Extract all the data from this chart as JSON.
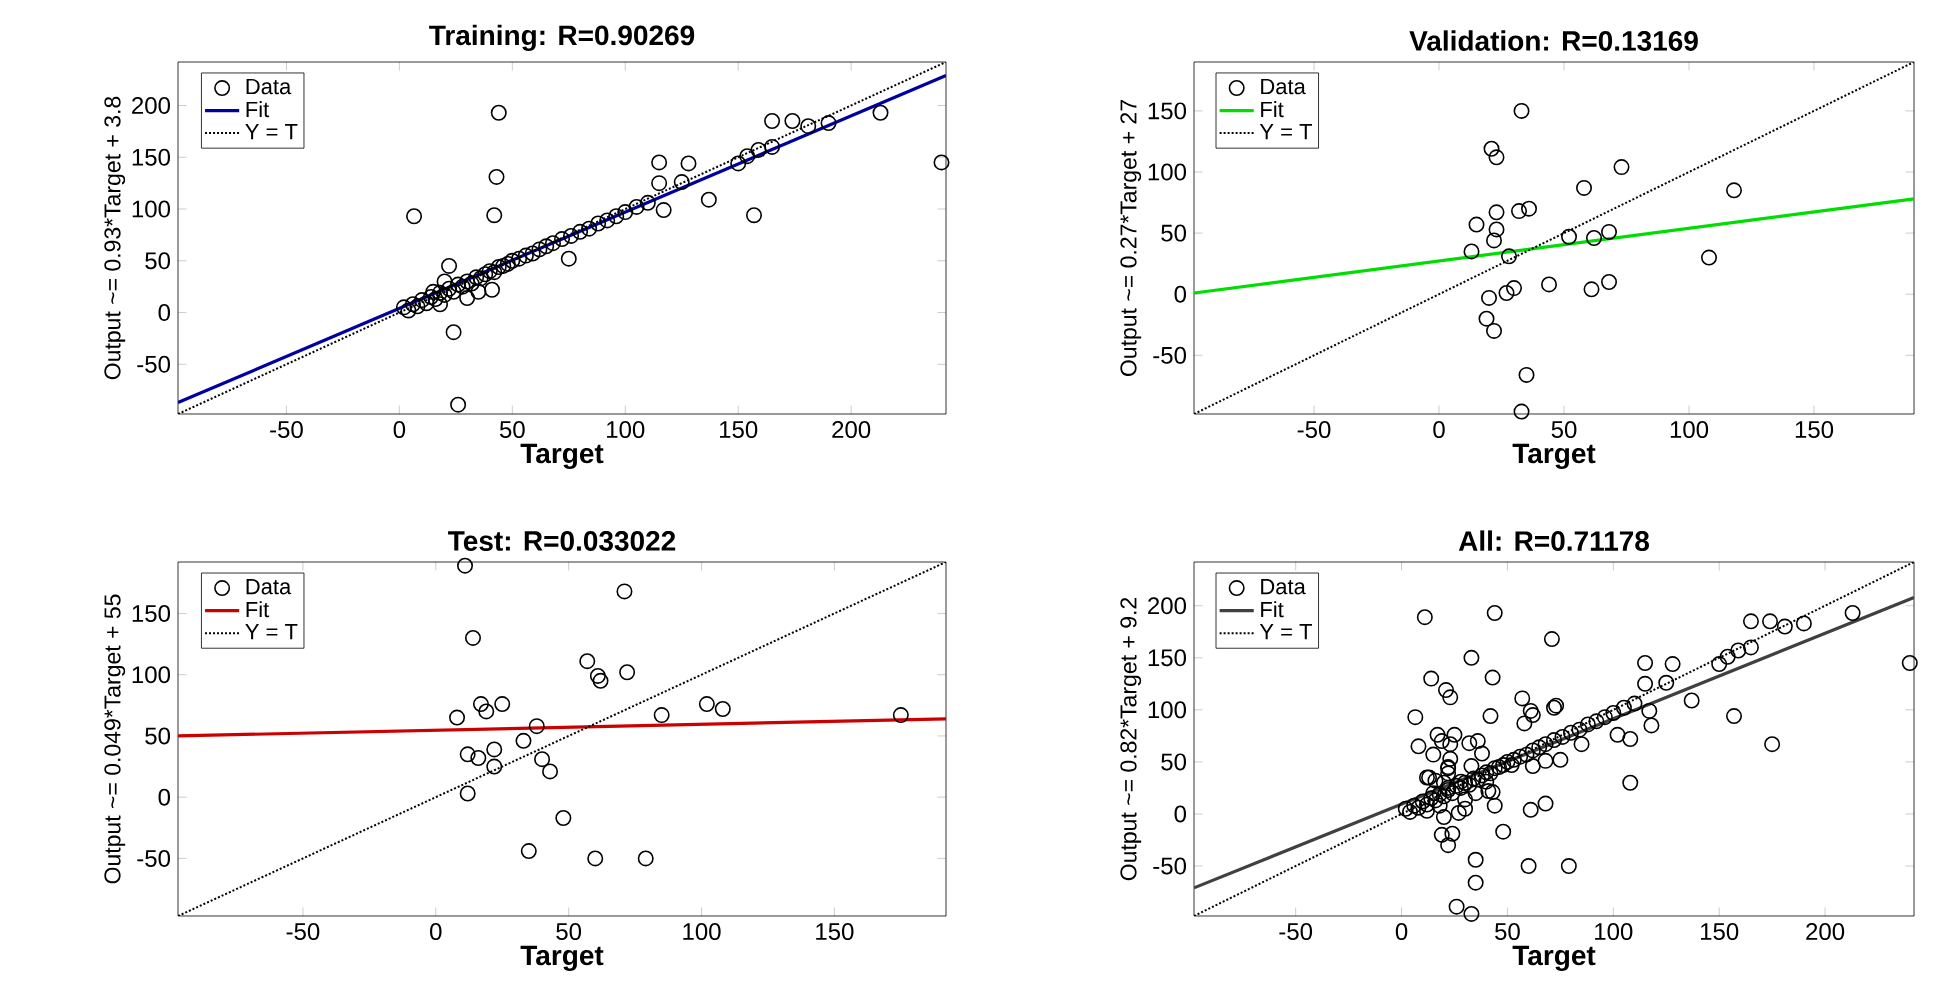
{
  "chart_data": [
    {
      "type": "scatter",
      "title": "Training: R=0.90269",
      "xlabel": "Target",
      "ylabel": "Output ~= 0.93*Target + 3.8",
      "xlim": [
        -98,
        242
      ],
      "ylim": [
        -98,
        242
      ],
      "xticks": [
        -50,
        0,
        50,
        100,
        150,
        200
      ],
      "yticks": [
        -50,
        0,
        50,
        100,
        150,
        200
      ],
      "legend": "top left",
      "series": [
        {
          "name": "Data",
          "marker": "circle",
          "color": "#000000",
          "x": [
            6.5,
            44,
            43,
            42,
            22,
            24,
            26,
            75,
            115,
            128,
            115,
            125,
            117,
            137,
            157,
            240,
            213,
            165,
            174,
            181,
            190,
            150,
            154,
            159,
            165,
            41,
            30,
            18,
            2,
            4,
            6,
            8,
            10,
            12,
            14,
            16,
            18,
            20,
            22,
            24,
            26,
            28,
            30,
            32,
            34,
            36,
            38,
            40,
            42,
            44,
            46,
            48,
            50,
            53,
            56,
            59,
            62,
            65,
            68,
            72,
            76,
            80,
            84,
            88,
            92,
            96,
            100,
            105,
            110,
            35,
            15,
            20
          ],
          "values": [
            93,
            193,
            131,
            94,
            45,
            -19,
            -89,
            52,
            145,
            144,
            125,
            126,
            99,
            109,
            94,
            145,
            193,
            185,
            185,
            180,
            183,
            144,
            151,
            157,
            160,
            22,
            14,
            8,
            5,
            2,
            8,
            6,
            12,
            9,
            15,
            13,
            19,
            17,
            23,
            20,
            27,
            25,
            30,
            28,
            34,
            33,
            37,
            40,
            39,
            44,
            45,
            47,
            50,
            52,
            55,
            57,
            61,
            64,
            67,
            71,
            74,
            78,
            81,
            86,
            89,
            93,
            97,
            102,
            106,
            20,
            20,
            30
          ]
        },
        {
          "name": "Fit",
          "type": "line",
          "marker": "none",
          "color": "#0000a0",
          "line_style": "solid",
          "x": [
            -98,
            242
          ],
          "values": [
            -87,
            229
          ]
        },
        {
          "name": "Y = T",
          "type": "line",
          "marker": "none",
          "color": "#000000",
          "line_style": "dotted",
          "x": [
            -98,
            242
          ],
          "values": [
            -98,
            242
          ]
        }
      ]
    },
    {
      "type": "scatter",
      "title": "Validation: R=0.13169",
      "xlabel": "Target",
      "ylabel": "Output ~= 0.27*Target + 27",
      "xlim": [
        -98,
        190
      ],
      "ylim": [
        -98,
        190
      ],
      "xticks": [
        -50,
        0,
        50,
        100,
        150
      ],
      "yticks": [
        -50,
        0,
        50,
        100,
        150
      ],
      "legend": "top left",
      "series": [
        {
          "name": "Data",
          "marker": "circle",
          "color": "#000000",
          "x": [
            33,
            21,
            23,
            73,
            58,
            118,
            32,
            36,
            23,
            15,
            23,
            22,
            13,
            28,
            52,
            62,
            68,
            108,
            44,
            61,
            68,
            30,
            27,
            20,
            19,
            22,
            35,
            33
          ],
          "values": [
            150,
            119,
            112,
            104,
            87,
            85,
            68,
            70,
            67,
            57,
            53,
            44,
            35,
            31,
            47,
            46,
            51,
            30,
            8,
            4,
            10,
            5,
            1,
            -3,
            -20,
            -30,
            -66,
            -96
          ]
        },
        {
          "name": "Fit",
          "type": "line",
          "marker": "none",
          "color": "#00dd00",
          "line_style": "solid",
          "x": [
            -98,
            190
          ],
          "values": [
            1,
            78
          ]
        },
        {
          "name": "Y = T",
          "type": "line",
          "marker": "none",
          "color": "#000000",
          "line_style": "dotted",
          "x": [
            -98,
            190
          ],
          "values": [
            -98,
            190
          ]
        }
      ]
    },
    {
      "type": "scatter",
      "title": "Test: R=0.033022",
      "xlabel": "Target",
      "ylabel": "Output ~= 0.049*Target + 55",
      "xlim": [
        -97,
        192
      ],
      "ylim": [
        -97,
        192
      ],
      "xticks": [
        -50,
        0,
        50,
        100,
        150
      ],
      "yticks": [
        -50,
        0,
        50,
        100,
        150
      ],
      "legend": "top left",
      "series": [
        {
          "name": "Data",
          "marker": "circle",
          "color": "#000000",
          "x": [
            11,
            71,
            14,
            57,
            61,
            62,
            72,
            102,
            108,
            85,
            175,
            8,
            17,
            25,
            19,
            38,
            33,
            12,
            16,
            22,
            22,
            40,
            43,
            12,
            48,
            35,
            60,
            79
          ],
          "values": [
            189,
            168,
            130,
            111,
            99,
            95,
            102,
            76,
            72,
            67,
            67,
            65,
            76,
            76,
            70,
            58,
            46,
            35,
            32,
            39,
            25,
            31,
            21,
            3,
            -17,
            -44,
            -50,
            -50
          ]
        },
        {
          "name": "Fit",
          "type": "line",
          "marker": "none",
          "color": "#cc0000",
          "line_style": "solid",
          "x": [
            -97,
            192
          ],
          "values": [
            50,
            64
          ]
        },
        {
          "name": "Y = T",
          "type": "line",
          "marker": "none",
          "color": "#000000",
          "line_style": "dotted",
          "x": [
            -97,
            192
          ],
          "values": [
            -97,
            192
          ]
        }
      ]
    },
    {
      "type": "scatter",
      "title": "All: R=0.71178",
      "xlabel": "Target",
      "ylabel": "Output ~= 0.82*Target + 9.2",
      "xlim": [
        -98,
        242
      ],
      "ylim": [
        -98,
        242
      ],
      "xticks": [
        -50,
        0,
        50,
        100,
        150,
        200
      ],
      "yticks": [
        -50,
        0,
        50,
        100,
        150,
        200
      ],
      "legend": "top left",
      "series": [
        {
          "name": "Data",
          "marker": "circle",
          "color": "#000000",
          "x": [
            6.5,
            44,
            43,
            42,
            22,
            24,
            26,
            75,
            115,
            128,
            115,
            125,
            117,
            137,
            157,
            240,
            213,
            165,
            174,
            181,
            190,
            150,
            154,
            159,
            165,
            41,
            30,
            18,
            2,
            4,
            6,
            8,
            10,
            12,
            14,
            16,
            18,
            20,
            22,
            24,
            26,
            28,
            30,
            32,
            34,
            36,
            38,
            40,
            42,
            44,
            46,
            48,
            50,
            53,
            56,
            59,
            62,
            65,
            68,
            72,
            76,
            80,
            84,
            88,
            92,
            96,
            100,
            105,
            110,
            35,
            15,
            20,
            33,
            21,
            23,
            73,
            58,
            118,
            32,
            36,
            23,
            15,
            23,
            22,
            13,
            28,
            52,
            62,
            68,
            108,
            44,
            61,
            68,
            30,
            27,
            20,
            19,
            22,
            35,
            33,
            11,
            71,
            14,
            57,
            61,
            62,
            72,
            102,
            108,
            85,
            175,
            8,
            17,
            25,
            19,
            38,
            33,
            12,
            16,
            22,
            22,
            40,
            43,
            12,
            48,
            35,
            60,
            79
          ],
          "values": [
            93,
            193,
            131,
            94,
            45,
            -19,
            -89,
            52,
            145,
            144,
            125,
            126,
            99,
            109,
            94,
            145,
            193,
            185,
            185,
            180,
            183,
            144,
            151,
            157,
            160,
            22,
            14,
            8,
            5,
            2,
            8,
            6,
            12,
            9,
            15,
            13,
            19,
            17,
            23,
            20,
            27,
            25,
            30,
            28,
            34,
            33,
            37,
            40,
            39,
            44,
            45,
            47,
            50,
            52,
            55,
            57,
            61,
            64,
            67,
            71,
            74,
            78,
            81,
            86,
            89,
            93,
            97,
            102,
            106,
            20,
            20,
            30,
            150,
            119,
            112,
            104,
            87,
            85,
            68,
            70,
            67,
            57,
            53,
            44,
            35,
            31,
            47,
            46,
            51,
            30,
            8,
            4,
            10,
            5,
            1,
            -3,
            -20,
            -30,
            -66,
            -96,
            189,
            168,
            130,
            111,
            99,
            95,
            102,
            76,
            72,
            67,
            67,
            65,
            76,
            76,
            70,
            58,
            46,
            35,
            32,
            39,
            25,
            31,
            21,
            3,
            -17,
            -44,
            -50,
            -50
          ]
        },
        {
          "name": "Fit",
          "type": "line",
          "marker": "none",
          "color": "#404040",
          "line_style": "solid",
          "x": [
            -98,
            242
          ],
          "values": [
            -71,
            208
          ]
        },
        {
          "name": "Y = T",
          "type": "line",
          "marker": "none",
          "color": "#000000",
          "line_style": "dotted",
          "x": [
            -98,
            242
          ],
          "values": [
            -98,
            242
          ]
        }
      ]
    }
  ]
}
